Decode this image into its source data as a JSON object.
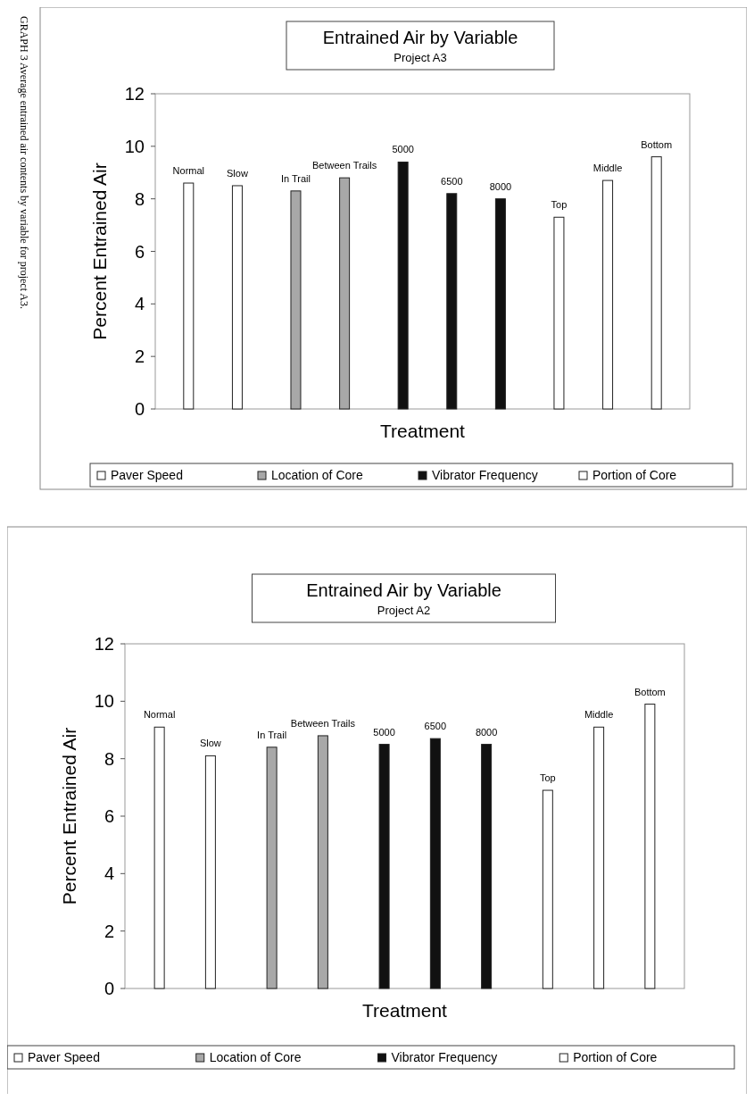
{
  "chart_data": [
    {
      "type": "bar",
      "title": "Entrained Air by Variable",
      "subtitle": "Project A3",
      "xlabel": "Treatment",
      "ylabel": "Percent Entrained Air",
      "annotations": [
        "GRAPH 3 Average entrained air contents by variable for project A3."
      ],
      "categories": [
        "Normal",
        "Slow",
        "In Trail",
        "Between Trails",
        "5000",
        "6500",
        "8000",
        "Top",
        "Middle",
        "Bottom"
      ],
      "series": [
        {
          "name": "Paver Speed",
          "color": "#ffffff",
          "values": [
            8.6,
            8.5,
            null,
            null,
            null,
            null,
            null,
            null,
            null,
            null
          ]
        },
        {
          "name": "Location of Core",
          "color": "#a8a8a8",
          "values": [
            null,
            null,
            8.3,
            8.8,
            null,
            null,
            null,
            null,
            null,
            null
          ]
        },
        {
          "name": "Vibrator Frequency",
          "color": "#111111",
          "values": [
            null,
            null,
            null,
            null,
            9.4,
            8.2,
            8.0,
            null,
            null,
            null
          ]
        },
        {
          "name": "Portion of Core",
          "color": "#ffffff",
          "values": [
            null,
            null,
            null,
            null,
            null,
            null,
            null,
            7.3,
            8.7,
            9.6
          ]
        }
      ],
      "ylim": [
        0,
        12
      ],
      "yticks": [
        0,
        2,
        4,
        6,
        8,
        10,
        12
      ],
      "legend": "bottom"
    },
    {
      "type": "bar",
      "title": "Entrained Air by Variable",
      "subtitle": "Project A2",
      "xlabel": "Treatment",
      "ylabel": "Percent Entrained Air",
      "categories": [
        "Normal",
        "Slow",
        "In Trail",
        "Between Trails",
        "5000",
        "6500",
        "8000",
        "Top",
        "Middle",
        "Bottom"
      ],
      "series": [
        {
          "name": "Paver Speed",
          "color": "#ffffff",
          "values": [
            9.1,
            8.1,
            null,
            null,
            null,
            null,
            null,
            null,
            null,
            null
          ]
        },
        {
          "name": "Location of Core",
          "color": "#a8a8a8",
          "values": [
            null,
            null,
            8.4,
            8.8,
            null,
            null,
            null,
            null,
            null,
            null
          ]
        },
        {
          "name": "Vibrator Frequency",
          "color": "#111111",
          "values": [
            null,
            null,
            null,
            null,
            8.5,
            8.7,
            8.5,
            null,
            null,
            null
          ]
        },
        {
          "name": "Portion of Core",
          "color": "#ffffff",
          "values": [
            null,
            null,
            null,
            null,
            null,
            null,
            null,
            6.9,
            9.1,
            9.9
          ]
        }
      ],
      "ylim": [
        0,
        12
      ],
      "yticks": [
        0,
        2,
        4,
        6,
        8,
        10,
        12
      ],
      "legend": "bottom"
    }
  ]
}
